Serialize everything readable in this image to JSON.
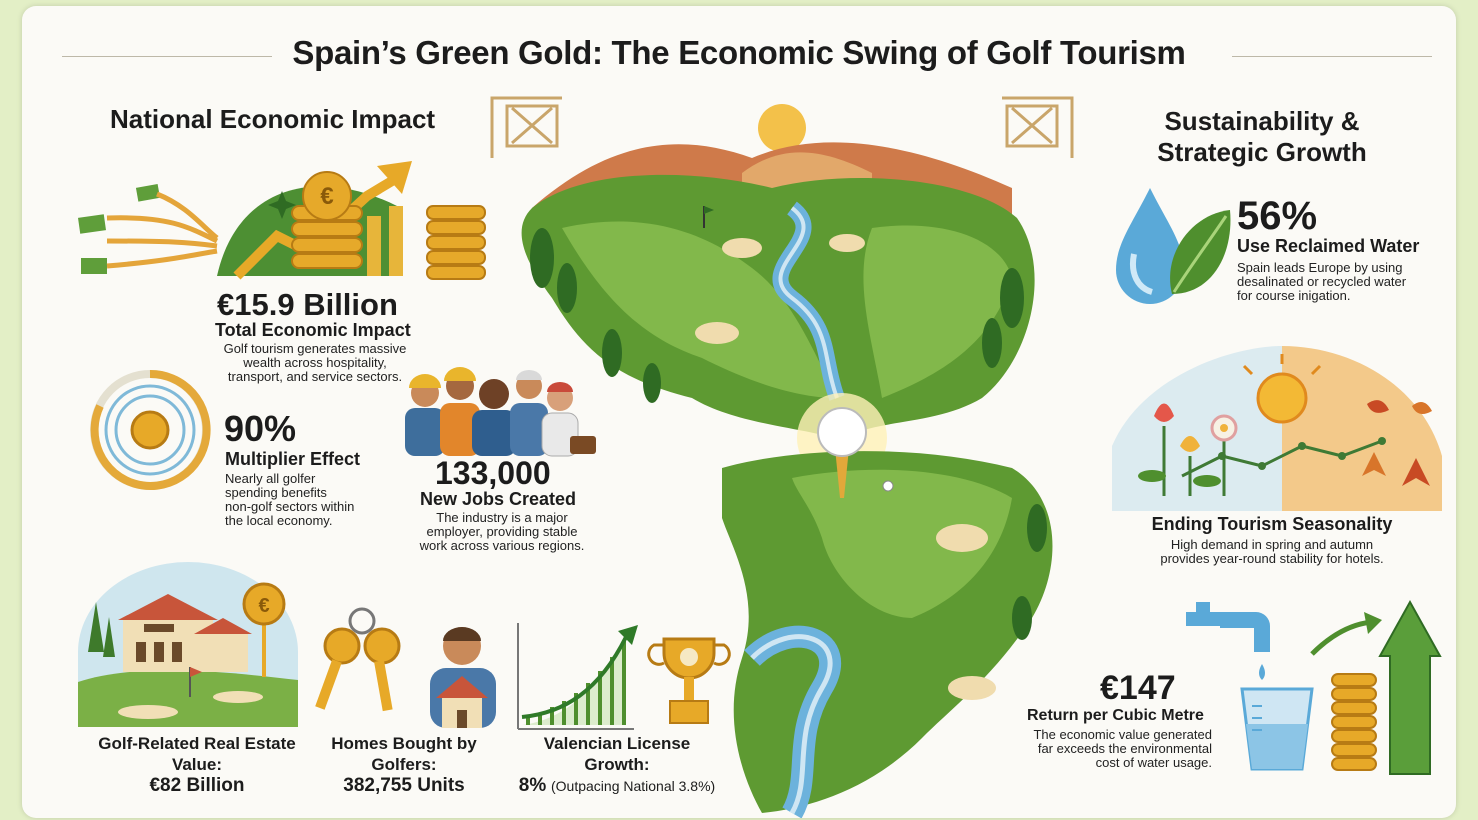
{
  "title": "Spain’s Green Gold: The Economic Swing of Golf Tourism",
  "left": {
    "heading": "National Economic Impact",
    "total": {
      "value": "€15.9 Billion",
      "label": "Total Economic Impact",
      "desc": [
        "Golf tourism generates massive",
        "wealth across hospitality,",
        "transport, and service sectors."
      ]
    },
    "multiplier": {
      "value": "90%",
      "label": "Multiplier Effect",
      "desc": [
        "Nearly all golfer",
        "spending benefits",
        "non-golf sectors within",
        "the local economy."
      ]
    },
    "jobs": {
      "value": "133,000",
      "label": "New Jobs Created",
      "desc": [
        "The industry is a major",
        "employer, providing stable",
        "work across various regions."
      ]
    },
    "real_estate": {
      "label": "Golf-Related Real Estate Value:",
      "value": "€82 Billion"
    },
    "homes": {
      "label": "Homes Bought by Golfers:",
      "value": "382,755 Units"
    },
    "license": {
      "label": "Valencian License Growth:",
      "value": "8%",
      "note": "(Outpacing National 3.8%)"
    }
  },
  "right": {
    "heading": [
      "Sustainability &",
      "Strategic Growth"
    ],
    "water": {
      "value": "56%",
      "label": "Use Reclaimed Water",
      "desc": [
        "Spain leads Europe by using",
        "desalinated or recycled water",
        "for course inigation."
      ]
    },
    "seasonality": {
      "label": "Ending Tourism Seasonality",
      "desc": [
        "High demand in spring and autumn",
        "provides year-round stability for hotels."
      ]
    },
    "return": {
      "value": "€147",
      "label": "Return per Cubic Metre",
      "desc": [
        "The economic value generated",
        "far exceeds the environmental",
        "cost of water usage."
      ]
    }
  },
  "icons": {
    "coin_symbol": "€",
    "names": [
      "money-growth-icon",
      "ripple-target-icon",
      "workers-icon",
      "villa-icon",
      "keys-house-icon",
      "growth-trophy-icon",
      "golf-course-map-icon",
      "water-leaf-icon",
      "seasons-icon",
      "tap-coins-icon"
    ]
  },
  "colors": {
    "accent_gold": "#e0a526",
    "green": "#4f8f2e",
    "dark_green": "#2f6b23",
    "water_blue": "#5aa9d8",
    "orange": "#d8752a"
  }
}
